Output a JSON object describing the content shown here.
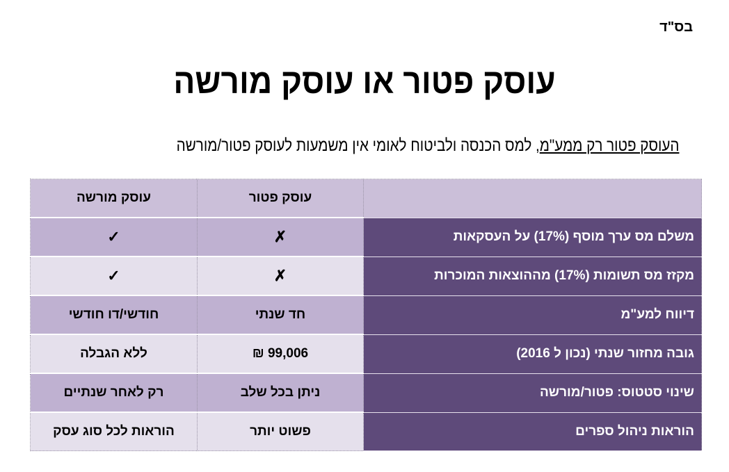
{
  "header_mark": "בס\"ד",
  "title": "עוסק פטור או עוסק מורשה",
  "subtitle": {
    "underlined": "העוסק פטור רק ממע\"מ",
    "rest": ", למס הכנסה ולביטוח לאומי אין משמעות לעוסק פטור/מורשה"
  },
  "table": {
    "columns": [
      "",
      "עוסק פטור",
      "עוסק מורשה"
    ],
    "rows": [
      {
        "label": "משלם מס ערך מוסף (17%) על העסקאות",
        "exempt": "✗",
        "licensed": "✓"
      },
      {
        "label": "מקזז מס תשומות (17%) מההוצאות המוכרות",
        "exempt": "✗",
        "licensed": "✓"
      },
      {
        "label": "דיווח למע\"מ",
        "exempt": "חד שנתי",
        "licensed": "חודשי/דו חודשי"
      },
      {
        "label": "גובה מחזור שנתי (נכון ל 2016)",
        "exempt": "99,006 ₪",
        "licensed": "ללא הגבלה"
      },
      {
        "label": "שינוי סטטוס: פטור/מורשה",
        "exempt": "ניתן בכל שלב",
        "licensed": "רק לאחר שנתיים"
      },
      {
        "label": "הוראות ניהול ספרים",
        "exempt": "פשוט יותר",
        "licensed": "הוראות לכל סוג עסק"
      }
    ]
  },
  "colors": {
    "label_bg": "#5e4a7a",
    "header_bg": "#cbbfd9",
    "row_dark": "#bfb1d1",
    "row_light": "#e5e0ec"
  }
}
